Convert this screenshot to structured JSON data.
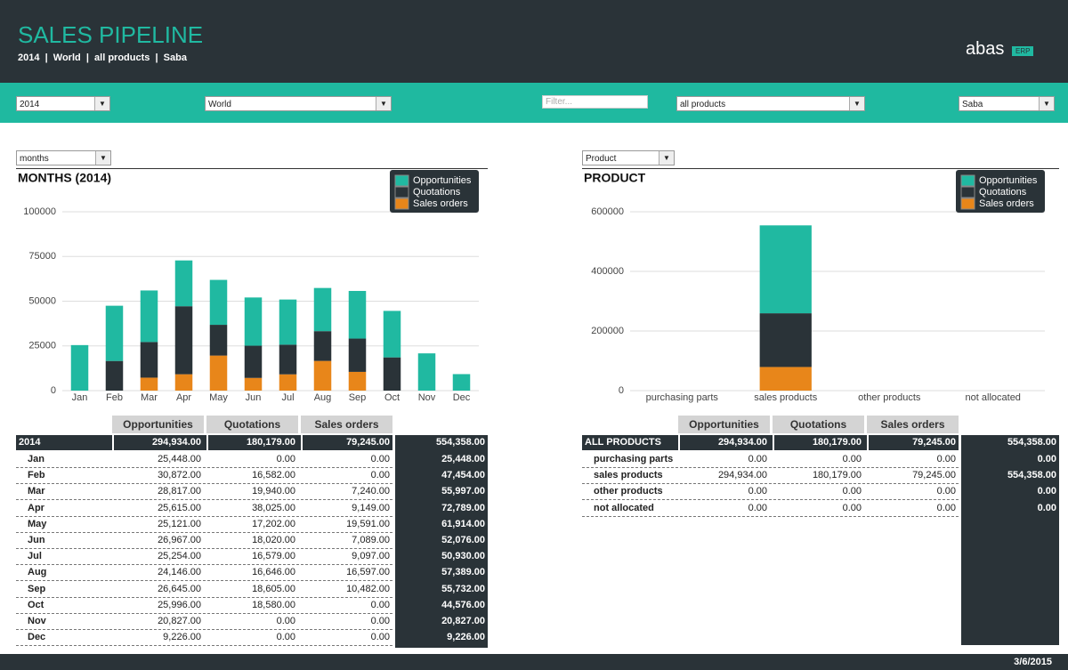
{
  "header": {
    "title": "SALES PIPELINE",
    "subtitle": "2014  |  World  |  all products  |  Saba",
    "logo": "abas",
    "logo_badge": "ERP"
  },
  "filters": {
    "year": "2014",
    "region": "World",
    "search_placeholder": "Filter...",
    "products": "all products",
    "user": "Saba"
  },
  "panel_selectors": [
    "months",
    "Product"
  ],
  "chart_data": [
    {
      "type": "stacked-bar",
      "title": "MONTHS (2014)",
      "categories": [
        "Jan",
        "Feb",
        "Mar",
        "Apr",
        "May",
        "Jun",
        "Jul",
        "Aug",
        "Sep",
        "Oct",
        "Nov",
        "Dec"
      ],
      "series": [
        {
          "name": "Sales orders",
          "color": "#e8861a",
          "values": [
            0,
            0,
            7240,
            9149,
            19591,
            7089,
            9097,
            16597,
            10482,
            0,
            0,
            0
          ]
        },
        {
          "name": "Quotations",
          "color": "#2a3338",
          "values": [
            0,
            16582,
            19940,
            38025,
            17202,
            18020,
            16579,
            16646,
            18605,
            18580,
            0,
            0
          ]
        },
        {
          "name": "Opportunities",
          "color": "#20b9a1",
          "values": [
            25448,
            30872,
            28817,
            25615,
            25121,
            26967,
            25254,
            24146,
            26645,
            25996,
            20827,
            9226
          ]
        }
      ],
      "ylim": [
        0,
        100000
      ],
      "yticks": [
        0,
        25000,
        50000,
        75000,
        100000
      ],
      "grid": true,
      "legend": "top-right"
    },
    {
      "type": "stacked-bar",
      "title": "PRODUCT",
      "categories": [
        "purchasing parts",
        "sales products",
        "other products",
        "not allocated"
      ],
      "series": [
        {
          "name": "Sales orders",
          "color": "#e8861a",
          "values": [
            0,
            79245,
            0,
            0
          ]
        },
        {
          "name": "Quotations",
          "color": "#2a3338",
          "values": [
            0,
            180179,
            0,
            0
          ]
        },
        {
          "name": "Opportunities",
          "color": "#20b9a1",
          "values": [
            0,
            294934,
            0,
            0
          ]
        }
      ],
      "ylim": [
        0,
        600000
      ],
      "yticks": [
        0,
        200000,
        400000,
        600000
      ],
      "grid": true,
      "legend": "top-right"
    }
  ],
  "tables": [
    {
      "columns": [
        "Opportunities",
        "Quotations",
        "Sales orders"
      ],
      "total_row": [
        "2014",
        "294,934.00",
        "180,179.00",
        "79,245.00",
        "554,358.00"
      ],
      "rows": [
        [
          "Jan",
          "25,448.00",
          "0.00",
          "0.00",
          "25,448.00"
        ],
        [
          "Feb",
          "30,872.00",
          "16,582.00",
          "0.00",
          "47,454.00"
        ],
        [
          "Mar",
          "28,817.00",
          "19,940.00",
          "7,240.00",
          "55,997.00"
        ],
        [
          "Apr",
          "25,615.00",
          "38,025.00",
          "9,149.00",
          "72,789.00"
        ],
        [
          "May",
          "25,121.00",
          "17,202.00",
          "19,591.00",
          "61,914.00"
        ],
        [
          "Jun",
          "26,967.00",
          "18,020.00",
          "7,089.00",
          "52,076.00"
        ],
        [
          "Jul",
          "25,254.00",
          "16,579.00",
          "9,097.00",
          "50,930.00"
        ],
        [
          "Aug",
          "24,146.00",
          "16,646.00",
          "16,597.00",
          "57,389.00"
        ],
        [
          "Sep",
          "26,645.00",
          "18,605.00",
          "10,482.00",
          "55,732.00"
        ],
        [
          "Oct",
          "25,996.00",
          "18,580.00",
          "0.00",
          "44,576.00"
        ],
        [
          "Nov",
          "20,827.00",
          "0.00",
          "0.00",
          "20,827.00"
        ],
        [
          "Dec",
          "9,226.00",
          "0.00",
          "0.00",
          "9,226.00"
        ]
      ]
    },
    {
      "columns": [
        "Opportunities",
        "Quotations",
        "Sales orders"
      ],
      "total_row": [
        "ALL PRODUCTS",
        "294,934.00",
        "180,179.00",
        "79,245.00",
        "554,358.00"
      ],
      "rows": [
        [
          "purchasing parts",
          "0.00",
          "0.00",
          "0.00",
          "0.00"
        ],
        [
          "sales products",
          "294,934.00",
          "180,179.00",
          "79,245.00",
          "554,358.00"
        ],
        [
          "other products",
          "0.00",
          "0.00",
          "0.00",
          "0.00"
        ],
        [
          "not allocated",
          "0.00",
          "0.00",
          "0.00",
          "0.00"
        ]
      ]
    }
  ],
  "footer": {
    "date": "3/6/2015"
  }
}
